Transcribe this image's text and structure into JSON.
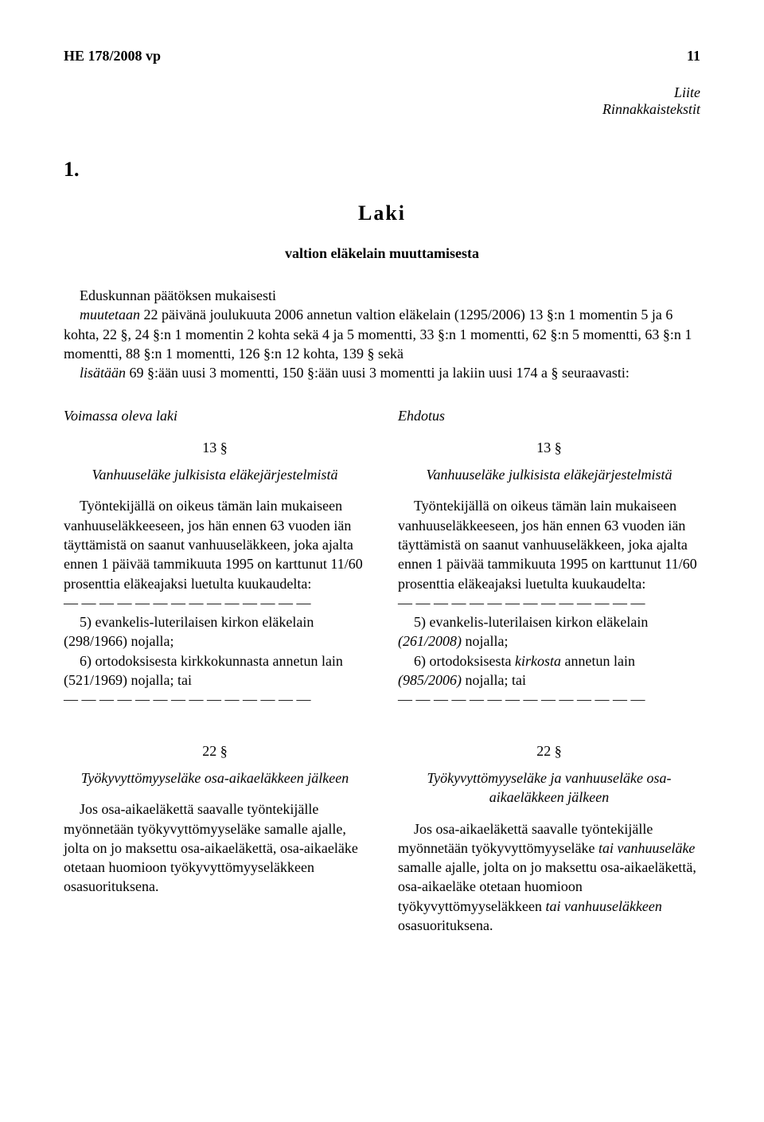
{
  "header": {
    "doc_ref": "HE 178/2008 vp",
    "page_number": "11"
  },
  "appendix": {
    "line1": "Liite",
    "line2": "Rinnakkaistekstit"
  },
  "num": "1.",
  "laki": "Laki",
  "subtitle": "valtion eläkelain muuttamisesta",
  "intro": {
    "p1a": "Eduskunnan päätöksen mukaisesti",
    "p2_before_italic": "muutetaan",
    "p2_after_italic": " 22 päivänä joulukuuta 2006 annetun valtion eläkelain (1295/2006) 13 §:n 1 momentin 5 ja 6 kohta, 22 §, 24 §:n 1 momentin 2 kohta sekä 4 ja 5 momentti, 33 §:n 1 momentti, 62 §:n 5 momentti, 63 §:n 1 momentti, 88 §:n 1 momentti, 126 §:n 12 kohta, 139 § sekä",
    "p3_before_italic": "lisätään",
    "p3_after_italic": " 69 §:ään uusi 3 momentti, 150 §:ään uusi 3 momentti ja lakiin uusi 174 a § seuraavasti:"
  },
  "left": {
    "col_title": "Voimassa oleva laki",
    "s13_num": "13 §",
    "s13_heading": "Vanhuuseläke julkisista eläkejärjestelmistä",
    "s13_p1": "Työntekijällä on oikeus tämän lain mukaiseen vanhuuseläkkeeseen, jos hän ennen 63 vuoden iän täyttämistä on saanut vanhuuseläkkeen, joka ajalta ennen 1 päivää tammikuuta 1995 on karttunut 11/60 prosenttia eläkeajaksi luetulta kuukaudelta:",
    "dashes_a": "— — — — — — — — — — — — — —",
    "s13_item5": "5) evankelis-luterilaisen kirkon eläkelain (298/1966) nojalla;",
    "s13_item6": "6) ortodoksisesta kirkkokunnasta annetun lain (521/1969) nojalla; tai",
    "dashes_b": "— — — — — — — — — — — — — —",
    "s22_num": "22 §",
    "s22_heading": "Työkyvyttömyyseläke osa-aikaeläkkeen jälkeen",
    "s22_p1": "Jos osa-aikaeläkettä saavalle työntekijälle myönnetään työkyvyttömyyseläke samalle ajalle, jolta on jo maksettu osa-aikaeläkettä, osa-aikaeläke otetaan huomioon työkyvyttömyyseläkkeen osasuorituksena."
  },
  "right": {
    "col_title": "Ehdotus",
    "s13_num": "13 §",
    "s13_heading": "Vanhuuseläke julkisista eläkejärjestelmistä",
    "s13_p1": "Työntekijällä on oikeus tämän lain mukaiseen vanhuuseläkkeeseen, jos hän ennen 63 vuoden iän täyttämistä on saanut vanhuuseläkkeen, joka ajalta ennen 1 päivää tammikuuta 1995 on karttunut 11/60 prosenttia eläkeajaksi luetulta kuukaudelta:",
    "dashes_a": "— — — — — — — — — — — — — —",
    "s13_item5_a": "5) evankelis-luterilaisen kirkon eläkelain ",
    "s13_item5_em": "(261/2008)",
    "s13_item5_b": " nojalla;",
    "s13_item6_a": "6) ortodoksisesta ",
    "s13_item6_em1": "kirkosta",
    "s13_item6_b": " annetun lain ",
    "s13_item6_em2": "(985/2006)",
    "s13_item6_c": " nojalla; tai",
    "dashes_b": "— — — — — — — — — — — — — —",
    "s22_num": "22 §",
    "s22_heading_a": "Työkyvyttömyyseläke ",
    "s22_heading_em": "ja vanhuuseläke",
    "s22_heading_b": " osa-aikaeläkkeen jälkeen",
    "s22_p1_a": "Jos osa-aikaeläkettä saavalle työntekijälle myönnetään työkyvyttömyyseläke ",
    "s22_p1_em1": "tai vanhuuseläke",
    "s22_p1_b": " samalle ajalle, jolta on jo maksettu osa-aikaeläkettä, osa-aikaeläke otetaan huomioon työkyvyttömyyseläkkeen ",
    "s22_p1_em2": "tai vanhuuseläkkeen",
    "s22_p1_c": " osasuorituksena."
  }
}
